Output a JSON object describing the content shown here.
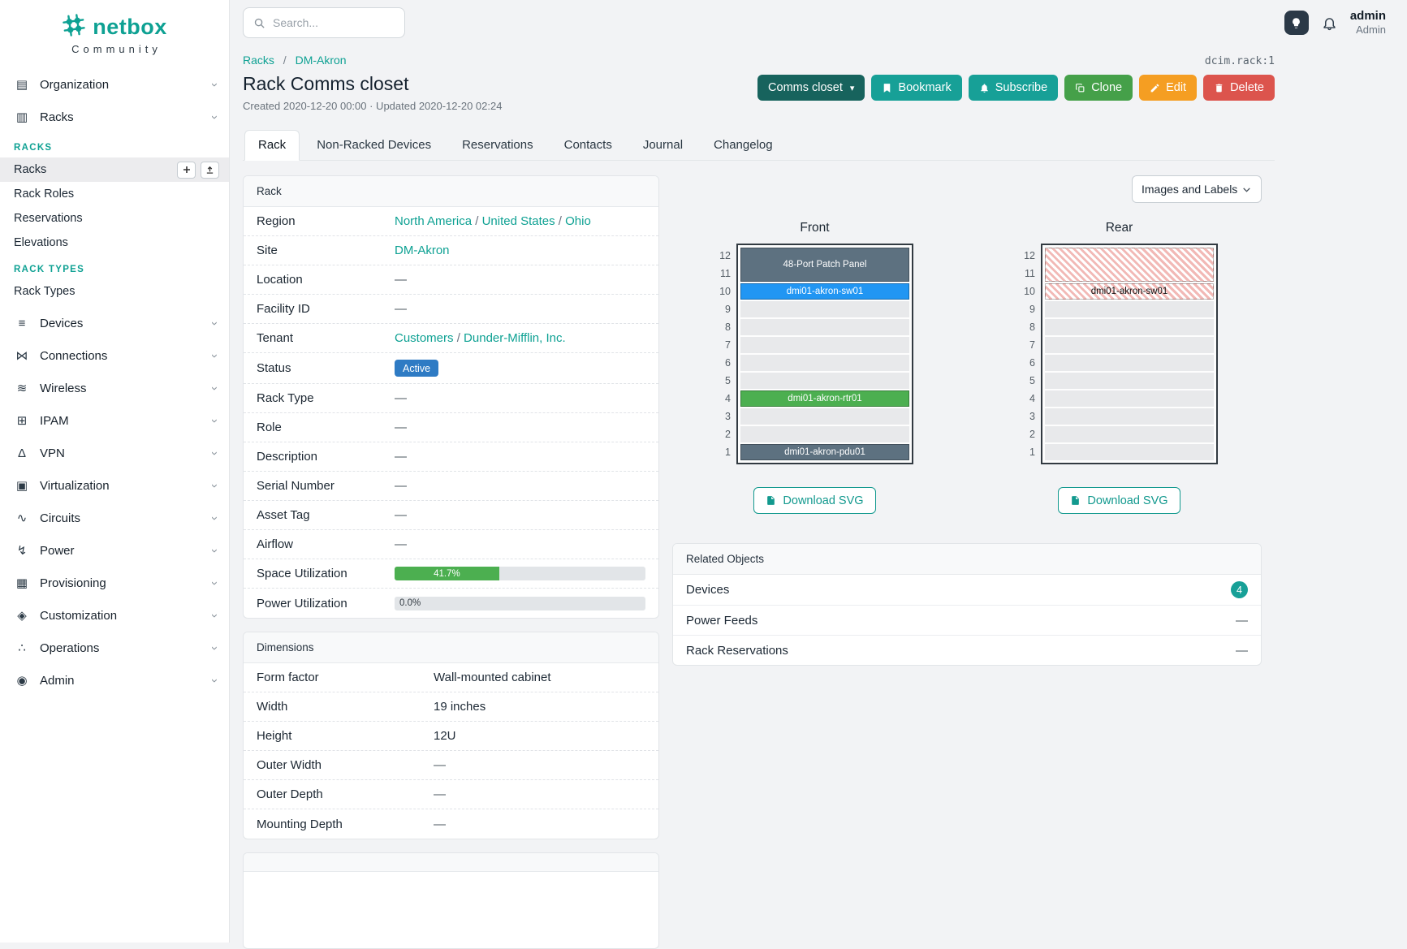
{
  "brand": {
    "name": "netbox",
    "tagline": "Community"
  },
  "topbar": {
    "search_placeholder": "Search...",
    "user": {
      "name": "admin",
      "role": "Admin"
    }
  },
  "sidebar": {
    "top_items": [
      {
        "label": "Organization",
        "icon": "organization-icon"
      },
      {
        "label": "Racks",
        "icon": "racks-icon",
        "expanded": true
      }
    ],
    "racks_menu": [
      {
        "heading": "RACKS",
        "items": [
          {
            "label": "Racks",
            "active": true,
            "actions": [
              "add",
              "import"
            ]
          },
          {
            "label": "Rack Roles"
          },
          {
            "label": "Reservations"
          },
          {
            "label": "Elevations"
          }
        ]
      },
      {
        "heading": "RACK TYPES",
        "items": [
          {
            "label": "Rack Types"
          }
        ]
      }
    ],
    "bottom_items": [
      {
        "label": "Devices",
        "icon": "devices-icon"
      },
      {
        "label": "Connections",
        "icon": "connections-icon"
      },
      {
        "label": "Wireless",
        "icon": "wireless-icon"
      },
      {
        "label": "IPAM",
        "icon": "ipam-icon"
      },
      {
        "label": "VPN",
        "icon": "vpn-icon"
      },
      {
        "label": "Virtualization",
        "icon": "virtualization-icon"
      },
      {
        "label": "Circuits",
        "icon": "circuits-icon"
      },
      {
        "label": "Power",
        "icon": "power-icon"
      },
      {
        "label": "Provisioning",
        "icon": "provisioning-icon"
      },
      {
        "label": "Customization",
        "icon": "customization-icon"
      },
      {
        "label": "Operations",
        "icon": "operations-icon"
      },
      {
        "label": "Admin",
        "icon": "admin-icon"
      }
    ]
  },
  "breadcrumb": {
    "links": [
      "Racks",
      "DM-Akron"
    ],
    "separator": "/"
  },
  "object_ref": "dcim.rack:1",
  "page": {
    "title": "Rack Comms closet",
    "meta": "Created 2020-12-20 00:00 · Updated 2020-12-20 02:24"
  },
  "actions": [
    {
      "label": "Comms closet",
      "type": "dropdown",
      "color": "#17635d"
    },
    {
      "label": "Bookmark",
      "icon": "bookmark-icon",
      "color": "#17a097"
    },
    {
      "label": "Subscribe",
      "icon": "bell-icon",
      "color": "#17a097"
    },
    {
      "label": "Clone",
      "icon": "copy-icon",
      "color": "#45a049"
    },
    {
      "label": "Edit",
      "icon": "pencil-icon",
      "color": "#f59e22"
    },
    {
      "label": "Delete",
      "icon": "trash-icon",
      "color": "#dc544d"
    }
  ],
  "tabs": [
    {
      "label": "Rack",
      "active": true
    },
    {
      "label": "Non-Racked Devices"
    },
    {
      "label": "Reservations"
    },
    {
      "label": "Contacts"
    },
    {
      "label": "Journal"
    },
    {
      "label": "Changelog"
    }
  ],
  "rack_card": {
    "title": "Rack",
    "rows": [
      {
        "label": "Region",
        "links": [
          "North America",
          "United States",
          "Ohio"
        ]
      },
      {
        "label": "Site",
        "links": [
          "DM-Akron"
        ]
      },
      {
        "label": "Location",
        "value": "—"
      },
      {
        "label": "Facility ID",
        "value": "—"
      },
      {
        "label": "Tenant",
        "links": [
          "Customers",
          "Dunder-Mifflin, Inc."
        ]
      },
      {
        "label": "Status",
        "badge": {
          "label": "Active",
          "color": "#2e7bc4"
        }
      },
      {
        "label": "Rack Type",
        "value": "—"
      },
      {
        "label": "Role",
        "value": "—"
      },
      {
        "label": "Description",
        "value": "—"
      },
      {
        "label": "Serial Number",
        "value": "—"
      },
      {
        "label": "Asset Tag",
        "value": "—"
      },
      {
        "label": "Airflow",
        "value": "—"
      },
      {
        "label": "Space Utilization",
        "progress": {
          "percent": 41.7,
          "label": "41.7%",
          "color": "#4caf50"
        }
      },
      {
        "label": "Power Utilization",
        "progress": {
          "percent": 0,
          "label": "0.0%",
          "color": "#4caf50"
        }
      }
    ]
  },
  "dimensions_card": {
    "title": "Dimensions",
    "rows": [
      {
        "label": "Form factor",
        "value": "Wall-mounted cabinet"
      },
      {
        "label": "Width",
        "value": "19 inches"
      },
      {
        "label": "Height",
        "value": "12U"
      },
      {
        "label": "Outer Width",
        "value": "—"
      },
      {
        "label": "Outer Depth",
        "value": "—"
      },
      {
        "label": "Mounting Depth",
        "value": "—"
      }
    ]
  },
  "elevation": {
    "view_select": "Images and Labels",
    "download_label": "Download SVG",
    "unit_count": 12,
    "front": {
      "title": "Front",
      "devices": [
        {
          "top_unit": 12,
          "span": 2,
          "label": "48-Port Patch Panel",
          "color": "#5d7180",
          "text_color": "#ffffff"
        },
        {
          "top_unit": 10,
          "span": 1,
          "label": "dmi01-akron-sw01",
          "color": "#2196f3",
          "text_color": "#ffffff"
        },
        {
          "top_unit": 4,
          "span": 1,
          "label": "dmi01-akron-rtr01",
          "color": "#4caf50",
          "text_color": "#ffffff"
        },
        {
          "top_unit": 1,
          "span": 1,
          "label": "dmi01-akron-pdu01",
          "color": "#5d7180",
          "text_color": "#ffffff"
        }
      ]
    },
    "rear": {
      "title": "Rear",
      "devices": [
        {
          "top_unit": 12,
          "span": 2,
          "label": "",
          "hatched": true,
          "text_color": "#111111"
        },
        {
          "top_unit": 10,
          "span": 1,
          "label": "dmi01-akron-sw01",
          "hatched": true,
          "text_color": "#111111"
        }
      ]
    }
  },
  "related_objects": {
    "title": "Related Objects",
    "rows": [
      {
        "label": "Devices",
        "count": "4"
      },
      {
        "label": "Power Feeds",
        "value": "—"
      },
      {
        "label": "Rack Reservations",
        "value": "—"
      }
    ]
  }
}
